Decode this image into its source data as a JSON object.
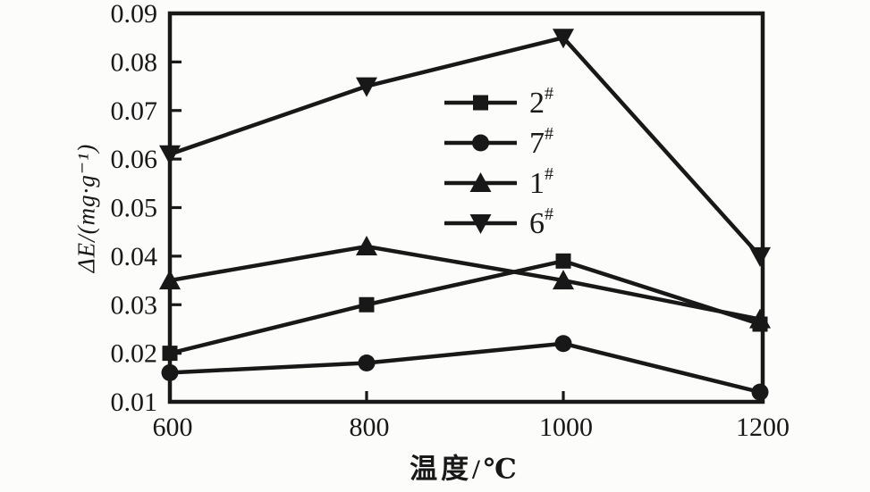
{
  "figure": {
    "background": "#fcfcfa",
    "ink": "#181818"
  },
  "chart_data": {
    "type": "line",
    "title": "",
    "xlabel": "温度/℃",
    "ylabel": "ΔE/(mg·g⁻¹)",
    "xlim": [
      600,
      1200
    ],
    "ylim": [
      0.01,
      0.09
    ],
    "grid": false,
    "legend_position": "inside upper-middle",
    "x": [
      600,
      800,
      1000,
      1200
    ],
    "x_tick_labels": [
      "600",
      "800",
      "1000",
      "1200"
    ],
    "y_ticks": [
      0.01,
      0.02,
      0.03,
      0.04,
      0.05,
      0.06,
      0.07,
      0.08,
      0.09
    ],
    "y_tick_labels": [
      "0.01",
      "0.02",
      "0.03",
      "0.04",
      "0.05",
      "0.06",
      "0.07",
      "0.08",
      "0.09"
    ],
    "series": [
      {
        "name": "2#",
        "label_base": "2",
        "label_sup": "#",
        "marker": "square",
        "values": [
          0.02,
          0.03,
          0.039,
          0.026
        ]
      },
      {
        "name": "7#",
        "label_base": "7",
        "label_sup": "#",
        "marker": "circle",
        "values": [
          0.016,
          0.018,
          0.022,
          0.012
        ]
      },
      {
        "name": "1#",
        "label_base": "1",
        "label_sup": "#",
        "marker": "triangle-up",
        "values": [
          0.035,
          0.042,
          0.035,
          0.027
        ]
      },
      {
        "name": "6#",
        "label_base": "6",
        "label_sup": "#",
        "marker": "triangle-down",
        "values": [
          0.061,
          0.075,
          0.085,
          0.04
        ]
      }
    ]
  }
}
